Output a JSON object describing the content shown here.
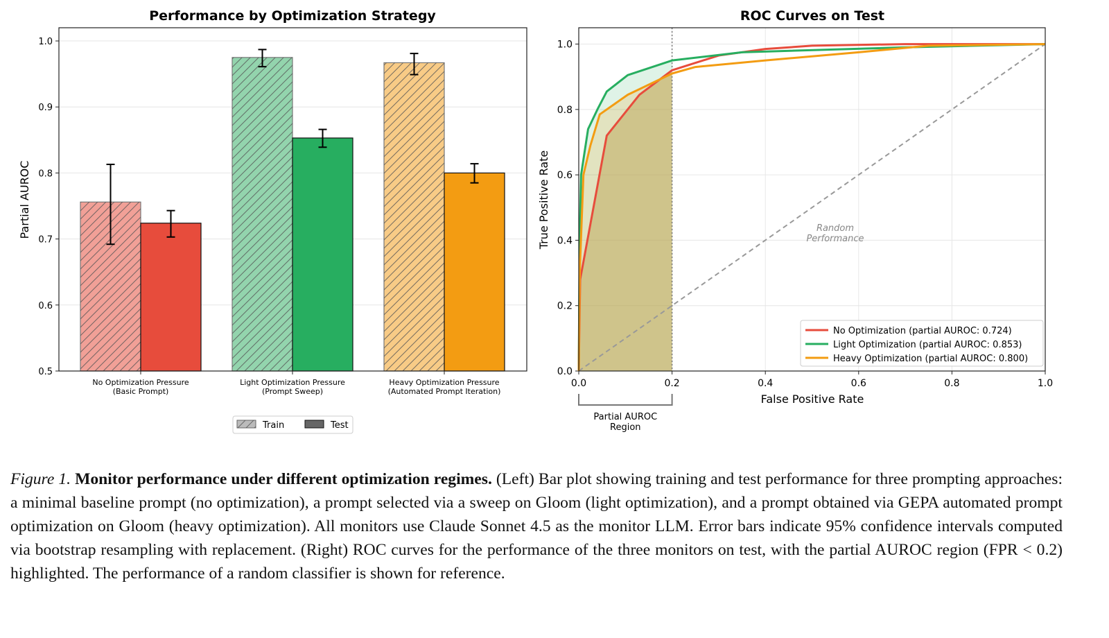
{
  "chart_data": [
    {
      "type": "bar",
      "title": "Performance by Optimization Strategy",
      "xlabel": "",
      "ylabel": "Partial AUROC",
      "ylim": [
        0.5,
        1.02
      ],
      "yticks": [
        "0.5",
        "0.6",
        "0.7",
        "0.8",
        "0.9",
        "1.0"
      ],
      "grid": true,
      "categories": [
        [
          "No Optimization Pressure",
          "(Basic Prompt)"
        ],
        [
          "Light Optimization Pressure",
          "(Prompt Sweep)"
        ],
        [
          "Heavy Optimization Pressure",
          "(Automated Prompt Iteration)"
        ]
      ],
      "colors": [
        "#e74c3c",
        "#27ae60",
        "#f39c12"
      ],
      "train_colors": [
        "#f1a097",
        "#93d4ad",
        "#f8cb86"
      ],
      "series": [
        {
          "name": "Train",
          "hatch": true,
          "values": [
            0.756,
            0.975,
            0.967
          ],
          "ci_low": [
            0.692,
            0.961,
            0.949
          ],
          "ci_high": [
            0.813,
            0.987,
            0.981
          ]
        },
        {
          "name": "Test",
          "hatch": false,
          "values": [
            0.724,
            0.853,
            0.8
          ],
          "ci_low": [
            0.703,
            0.839,
            0.785
          ],
          "ci_high": [
            0.743,
            0.866,
            0.814
          ]
        }
      ],
      "legend": {
        "placement": "bottom-center",
        "entries": [
          "Train",
          "Test"
        ]
      }
    },
    {
      "type": "line",
      "title": "ROC Curves on Test",
      "xlabel": "False Positive Rate",
      "ylabel": "True Positive Rate",
      "xlim": [
        0,
        1
      ],
      "ylim": [
        0,
        1.05
      ],
      "xticks": [
        "0.0",
        "0.2",
        "0.4",
        "0.6",
        "0.8",
        "1.0"
      ],
      "yticks": [
        "0.0",
        "0.2",
        "0.4",
        "0.6",
        "0.8",
        "1.0"
      ],
      "grid": true,
      "series": [
        {
          "name": "No Optimization (partial AUROC: 0.724)",
          "color": "#e74c3c",
          "x": [
            0,
            0.003,
            0.06,
            0.13,
            0.2,
            0.3,
            0.4,
            0.5,
            0.7,
            1.0
          ],
          "y": [
            0,
            0.28,
            0.72,
            0.845,
            0.92,
            0.965,
            0.985,
            0.995,
            1.0,
            1.0
          ]
        },
        {
          "name": "Light Optimization (partial AUROC: 0.853)",
          "color": "#27ae60",
          "x": [
            0,
            0.002,
            0.005,
            0.02,
            0.04,
            0.06,
            0.105,
            0.2,
            0.35,
            0.7,
            1.0
          ],
          "y": [
            0,
            0.4,
            0.6,
            0.74,
            0.8,
            0.855,
            0.905,
            0.95,
            0.975,
            0.99,
            1.0
          ]
        },
        {
          "name": "Heavy Optimization (partial AUROC: 0.800)",
          "color": "#f39c12",
          "x": [
            0,
            0.002,
            0.01,
            0.025,
            0.045,
            0.105,
            0.2,
            0.25,
            0.4,
            0.6,
            0.75,
            1.0
          ],
          "y": [
            0,
            0.3,
            0.6,
            0.69,
            0.785,
            0.845,
            0.91,
            0.93,
            0.95,
            0.975,
            0.995,
            1.0
          ]
        }
      ],
      "reference_line": {
        "label": [
          "Random",
          "Performance"
        ],
        "x": [
          0,
          1
        ],
        "y": [
          0,
          1
        ],
        "color": "#999999"
      },
      "highlight_region": {
        "fpr_max": 0.2,
        "label": [
          "Partial AUROC",
          "Region"
        ]
      },
      "legend": {
        "placement": "bottom-right"
      }
    }
  ],
  "caption": {
    "label": "Figure 1.",
    "title": "Monitor performance under different optimization regimes.",
    "body": " (Left) Bar plot showing training and test performance for three prompting approaches: a minimal baseline prompt (no optimization), a prompt selected via a sweep on Gloom (light optimization), and a prompt obtained via GEPA automated prompt optimization on Gloom (heavy optimization). All monitors use Claude Sonnet 4.5 as the monitor LLM. Error bars indicate 95% confidence intervals computed via bootstrap resampling with replacement. (Right) ROC curves for the performance of the three monitors on test, with the partial AUROC region (FPR < 0.2) highlighted. The performance of a random classifier is shown for reference."
  }
}
